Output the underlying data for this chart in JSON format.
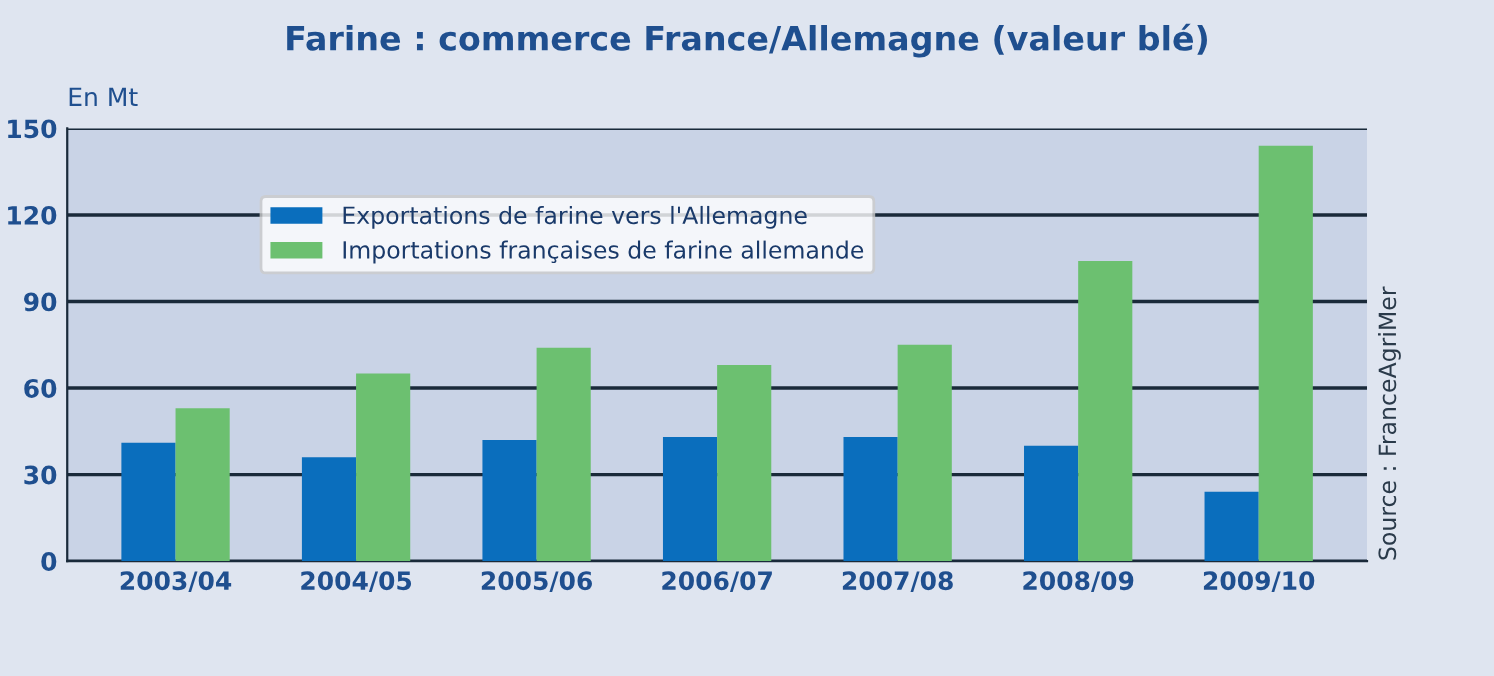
{
  "chart_data": {
    "type": "bar",
    "title": "Farine : commerce France/Allemagne (valeur blé)",
    "ylabel": "En Mt",
    "categories": [
      "2003/04",
      "2004/05",
      "2005/06",
      "2006/07",
      "2007/08",
      "2008/09",
      "2009/10"
    ],
    "series": [
      {
        "name": "Exportations de farine vers l'Allemagne",
        "color": "#0a6ebd",
        "values": [
          41,
          36,
          42,
          43,
          43,
          40,
          24
        ]
      },
      {
        "name": "Importations françaises de farine allemande",
        "color": "#6cc070",
        "values": [
          53,
          65,
          74,
          68,
          75,
          104,
          144
        ]
      }
    ],
    "ylim": [
      0,
      150
    ],
    "yticks": [
      0,
      30,
      60,
      90,
      120,
      150
    ],
    "grid": "y",
    "legend": "top left",
    "annotations": [
      "Source : FranceAgriMer"
    ]
  }
}
